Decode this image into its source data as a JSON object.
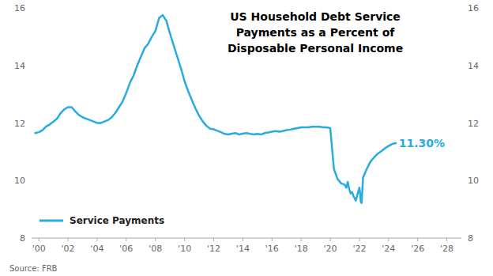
{
  "chart_data": {
    "type": "line",
    "title": "US Household Debt Service\nPayments as a Percent of\nDisposable Personal Income",
    "source": "Source: FRB",
    "x": [
      1999.75,
      2000,
      2000.25,
      2000.5,
      2000.75,
      2001,
      2001.25,
      2001.5,
      2001.75,
      2002,
      2002.25,
      2002.5,
      2002.75,
      2003,
      2003.25,
      2003.5,
      2003.75,
      2004,
      2004.25,
      2004.5,
      2004.75,
      2005,
      2005.25,
      2005.5,
      2005.75,
      2006,
      2006.25,
      2006.5,
      2006.75,
      2007,
      2007.25,
      2007.5,
      2007.75,
      2008,
      2008.25,
      2008.5,
      2008.75,
      2009,
      2009.25,
      2009.5,
      2009.75,
      2010,
      2010.25,
      2010.5,
      2010.75,
      2011,
      2011.25,
      2011.5,
      2011.75,
      2012,
      2012.25,
      2012.5,
      2012.75,
      2013,
      2013.25,
      2013.5,
      2013.75,
      2014,
      2014.25,
      2014.5,
      2014.75,
      2015,
      2015.25,
      2015.5,
      2015.75,
      2016,
      2016.25,
      2016.5,
      2016.75,
      2017,
      2017.25,
      2017.5,
      2017.75,
      2018,
      2018.25,
      2018.5,
      2018.75,
      2019,
      2019.25,
      2019.5,
      2019.75,
      2020,
      2020.25,
      2020.5,
      2020.75,
      2021,
      2021.1,
      2021.2,
      2021.3,
      2021.4,
      2021.5,
      2021.6,
      2021.75,
      2022,
      2022.05,
      2022.1,
      2022.15,
      2022.25,
      2022.5,
      2022.75,
      2023,
      2023.25,
      2023.5,
      2023.75,
      2024,
      2024.25,
      2024.5
    ],
    "series": [
      {
        "name": "Service Payments",
        "color": "#29ABE2",
        "values": [
          11.65,
          11.68,
          11.75,
          11.88,
          11.95,
          12.05,
          12.15,
          12.35,
          12.48,
          12.55,
          12.55,
          12.4,
          12.28,
          12.2,
          12.15,
          12.1,
          12.05,
          12.0,
          12.0,
          12.05,
          12.1,
          12.2,
          12.35,
          12.55,
          12.75,
          13.05,
          13.4,
          13.65,
          14.0,
          14.3,
          14.6,
          14.75,
          15.0,
          15.2,
          15.65,
          15.75,
          15.55,
          15.1,
          14.7,
          14.3,
          13.9,
          13.45,
          13.1,
          12.8,
          12.5,
          12.25,
          12.05,
          11.9,
          11.8,
          11.78,
          11.73,
          11.68,
          11.62,
          11.6,
          11.63,
          11.65,
          11.6,
          11.63,
          11.65,
          11.62,
          11.6,
          11.62,
          11.6,
          11.65,
          11.67,
          11.7,
          11.72,
          11.7,
          11.72,
          11.75,
          11.77,
          11.8,
          11.82,
          11.85,
          11.85,
          11.85,
          11.87,
          11.87,
          11.87,
          11.85,
          11.85,
          11.82,
          10.4,
          10.05,
          9.9,
          9.85,
          9.75,
          9.95,
          9.7,
          9.55,
          9.6,
          9.45,
          9.3,
          9.75,
          9.55,
          9.25,
          9.22,
          10.1,
          10.4,
          10.65,
          10.8,
          10.93,
          11.02,
          11.12,
          11.2,
          11.27,
          11.3
        ]
      }
    ],
    "annotations": [
      {
        "text": "11.30%",
        "x": 2024.7,
        "y": 11.3
      }
    ],
    "xlim": [
      1999.5,
      2029.0
    ],
    "xticks": [
      {
        "value": 2000,
        "label": "'00"
      },
      {
        "value": 2002,
        "label": "'02"
      },
      {
        "value": 2004,
        "label": "'04"
      },
      {
        "value": 2006,
        "label": "'06"
      },
      {
        "value": 2008,
        "label": "'08"
      },
      {
        "value": 2010,
        "label": "'10"
      },
      {
        "value": 2012,
        "label": "'12"
      },
      {
        "value": 2014,
        "label": "'14"
      },
      {
        "value": 2016,
        "label": "'16"
      },
      {
        "value": 2018,
        "label": "'18"
      },
      {
        "value": 2020,
        "label": "'20"
      },
      {
        "value": 2022,
        "label": "'22"
      },
      {
        "value": 2024,
        "label": "'24"
      },
      {
        "value": 2026,
        "label": "'26"
      },
      {
        "value": 2028,
        "label": "'28"
      }
    ],
    "ylim": [
      8,
      16
    ],
    "yticks": [
      8,
      10,
      12,
      14,
      16
    ],
    "y2lim": [
      8,
      16
    ],
    "y2ticks": [
      8,
      10,
      12,
      14,
      16
    ],
    "grid": false,
    "legend": "lower left"
  }
}
